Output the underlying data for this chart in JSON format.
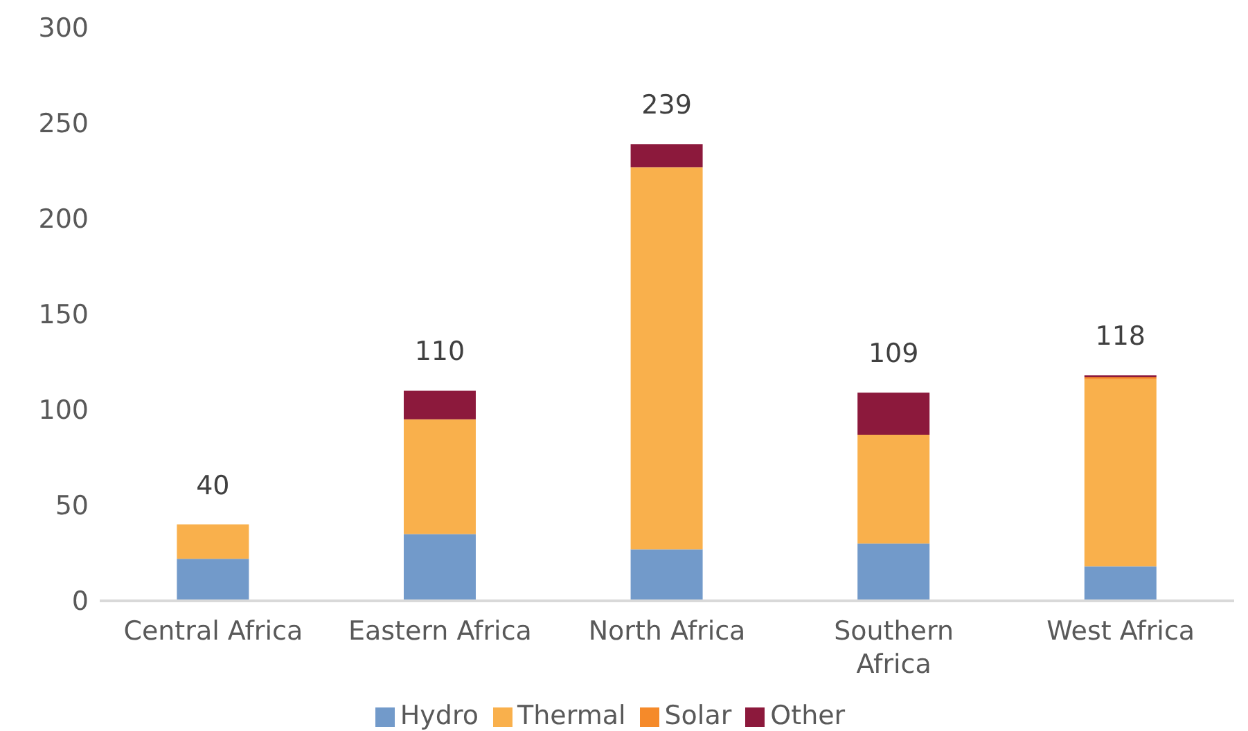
{
  "chart_data": {
    "type": "bar",
    "stacked": true,
    "categories": [
      "Central Africa",
      "Eastern Africa",
      "North Africa",
      "Southern Africa",
      "West Africa"
    ],
    "series": [
      {
        "name": "Hydro",
        "color": "#729aca",
        "values": [
          22,
          35,
          27,
          30,
          18
        ]
      },
      {
        "name": "Thermal",
        "color": "#f9b04c",
        "values": [
          18,
          60,
          200,
          57,
          98
        ]
      },
      {
        "name": "Solar",
        "color": "#f58a2a",
        "values": [
          0,
          0,
          0,
          0,
          1
        ]
      },
      {
        "name": "Other",
        "color": "#8c193c",
        "values": [
          0,
          15,
          12,
          22,
          1
        ]
      }
    ],
    "totals": [
      "40",
      "110",
      "239",
      "109",
      "118"
    ],
    "ylim": [
      0,
      300
    ],
    "yticks": [
      0,
      50,
      100,
      150,
      200,
      250,
      300
    ],
    "grid": false,
    "legend": "bottom"
  }
}
